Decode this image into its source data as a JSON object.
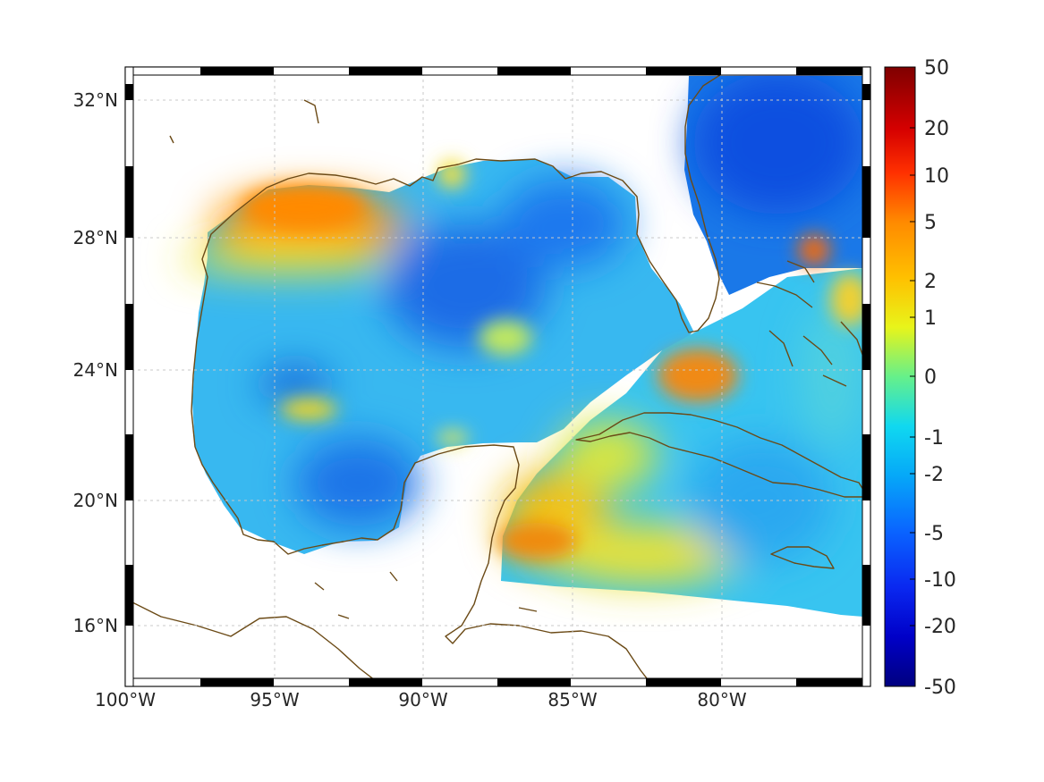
{
  "map": {
    "longitude_ticks": [
      "100°W",
      "95°W",
      "90°W",
      "85°W",
      "80°W"
    ],
    "latitude_ticks": [
      "32°N",
      "28°N",
      "24°N",
      "20°N",
      "16°N"
    ],
    "extent": {
      "lon": [
        -100,
        -75
      ],
      "lat": [
        14.5,
        33
      ]
    },
    "coastline_color": "#6b4a16",
    "grid": "dotted"
  },
  "colorbar": {
    "labels": [
      "50",
      "20",
      "10",
      "5",
      "2",
      "1",
      "0",
      "-1",
      "-2",
      "-5",
      "-10",
      "-20",
      "-50"
    ],
    "colors": [
      "#7f0000",
      "#d80000",
      "#ff4200",
      "#ff9a00",
      "#f5e60a",
      "#a8f050",
      "#28d8e8",
      "#06b4f5",
      "#0a80ff",
      "#0a40ff",
      "#0a00d8",
      "#00007f"
    ],
    "scale": "symmetric-log"
  }
}
